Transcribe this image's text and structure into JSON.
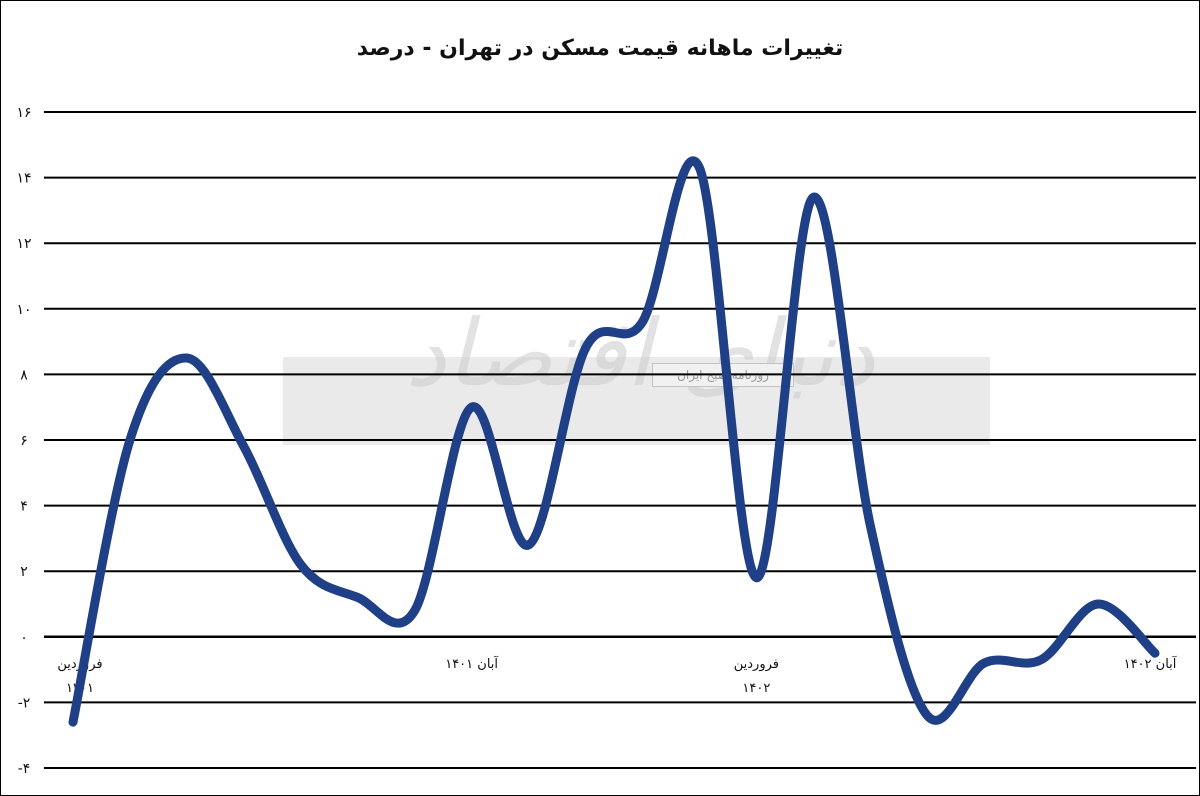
{
  "chart_data": {
    "type": "line",
    "title": "تغییرات ماهانه قیمت مسکن در تهران - درصد",
    "xlabel": "",
    "ylabel": "",
    "ylim": [
      -4,
      16
    ],
    "y_ticks": [
      {
        "value": 16,
        "label": "۱۶"
      },
      {
        "value": 14,
        "label": "۱۴"
      },
      {
        "value": 12,
        "label": "۱۲"
      },
      {
        "value": 10,
        "label": "۱۰"
      },
      {
        "value": 8,
        "label": "۸"
      },
      {
        "value": 6,
        "label": "۶"
      },
      {
        "value": 4,
        "label": "۴"
      },
      {
        "value": 2,
        "label": "۲"
      },
      {
        "value": 0,
        "label": "۰"
      },
      {
        "value": -2,
        "label": "-۲"
      },
      {
        "value": -4,
        "label": "-۴"
      }
    ],
    "x_labels": [
      {
        "index": 0,
        "lines": [
          "فروردین",
          "۱۴۰۱"
        ]
      },
      {
        "index": 7,
        "lines": [
          "آبان ۱۴۰۱"
        ]
      },
      {
        "index": 12,
        "lines": [
          "فروردین",
          "۱۴۰۲"
        ]
      },
      {
        "index": 19,
        "lines": [
          "آبان ۱۴۰۲"
        ]
      }
    ],
    "grid": true,
    "series": [
      {
        "color": "#1f3f87",
        "values": [
          -2.6,
          6.0,
          8.5,
          5.8,
          2.2,
          1.2,
          0.8,
          7.0,
          2.8,
          8.8,
          9.6,
          14.3,
          1.8,
          13.4,
          3.4,
          -2.4,
          -0.8,
          -0.7,
          1.0,
          -0.5
        ]
      }
    ]
  },
  "watermark": {
    "logo_text": "دنیای اقتصاد",
    "sub_text": "روزنامه صبح ایران"
  }
}
